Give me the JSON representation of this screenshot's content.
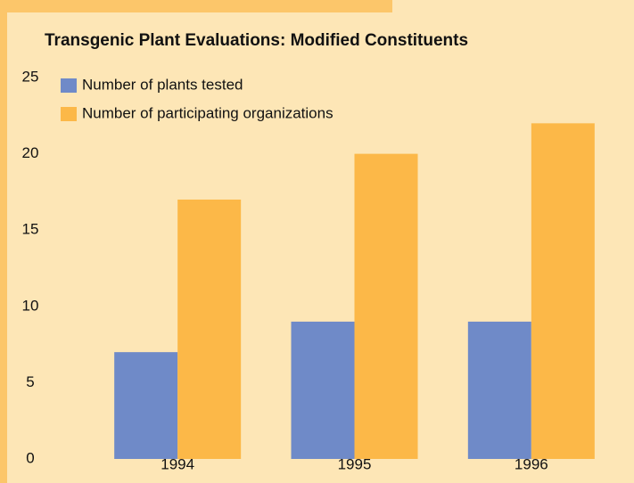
{
  "chart_data": {
    "type": "bar",
    "title": "Transgenic Plant Evaluations: Modified Constituents",
    "categories": [
      "1994",
      "1995",
      "1996"
    ],
    "series": [
      {
        "name": "Number of plants tested",
        "color": "#6f8ac8",
        "values": [
          7,
          9,
          9
        ]
      },
      {
        "name": "Number of participating organizations",
        "color": "#fcb848",
        "values": [
          17,
          20,
          22
        ]
      }
    ],
    "ylim": [
      0,
      25
    ],
    "yticks": [
      0,
      5,
      10,
      15,
      20,
      25
    ],
    "grid": false
  }
}
